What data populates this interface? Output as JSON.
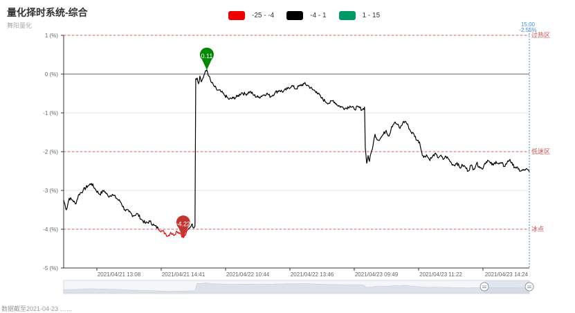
{
  "header": {
    "title": "量化择时系统-综合",
    "subtitle": "舞阳量化"
  },
  "legend": [
    {
      "label": "-25 - -4",
      "color": "#ee0000"
    },
    {
      "label": "-4 - 1",
      "color": "#000000"
    },
    {
      "label": "1 - 15",
      "color": "#009966"
    }
  ],
  "footer_note": "数据截至2021-04-23 ……",
  "chart_data": {
    "type": "line",
    "title": "量化择时系统-综合",
    "ylim": [
      -5,
      1
    ],
    "yticks": [
      1,
      0,
      -1,
      -2,
      -3,
      -4,
      -5
    ],
    "ytick_labels": [
      "1 (%)",
      "0 (%)",
      "-1 (%)",
      "-2 (%)",
      "-3 (%)",
      "-4 (%)",
      "-5 (%)"
    ],
    "xtick_labels": [
      "2021/04/21 13:08",
      "2021/04/21 14:41",
      "2021/04/22 10:44",
      "2021/04/22 13:46",
      "2021/04/23 09:49",
      "2021/04/23 11:22",
      "2021/04/23 14:24"
    ],
    "mark_lines": [
      {
        "value": 1,
        "label": "过热区"
      },
      {
        "value": -2,
        "label": "低迷区"
      },
      {
        "value": -4,
        "label": "冰点"
      }
    ],
    "mark_points": [
      {
        "label": "-4.22",
        "value": -4.22,
        "x": 172,
        "color": "#c23531"
      },
      {
        "label": "0.11",
        "value": 0.11,
        "x": 206,
        "color": "#008800"
      }
    ],
    "tooltip": {
      "time": "15:00",
      "value": "-2.55%"
    },
    "visual_map": [
      {
        "range": [
          -25,
          -4
        ],
        "color": "#ee0000"
      },
      {
        "range": [
          -4,
          1
        ],
        "color": "#000000"
      },
      {
        "range": [
          1,
          15
        ],
        "color": "#009966"
      }
    ],
    "anchors": [
      [
        0,
        -3.25
      ],
      [
        4,
        -3.5
      ],
      [
        8,
        -3.2
      ],
      [
        13,
        -3.25
      ],
      [
        17,
        -3.35
      ],
      [
        22,
        -3.1
      ],
      [
        28,
        -3.0
      ],
      [
        35,
        -2.88
      ],
      [
        40,
        -2.82
      ],
      [
        46,
        -2.98
      ],
      [
        52,
        -3.1
      ],
      [
        58,
        -3.0
      ],
      [
        64,
        -3.15
      ],
      [
        70,
        -3.1
      ],
      [
        76,
        -3.2
      ],
      [
        82,
        -3.3
      ],
      [
        88,
        -3.5
      ],
      [
        94,
        -3.55
      ],
      [
        100,
        -3.65
      ],
      [
        106,
        -3.6
      ],
      [
        112,
        -3.75
      ],
      [
        118,
        -3.85
      ],
      [
        124,
        -3.8
      ],
      [
        130,
        -3.9
      ],
      [
        136,
        -3.98
      ],
      [
        142,
        -4.05
      ],
      [
        146,
        -4.1
      ],
      [
        150,
        -4.18
      ],
      [
        154,
        -4.08
      ],
      [
        158,
        -4.15
      ],
      [
        163,
        -4.05
      ],
      [
        168,
        -4.1
      ],
      [
        172,
        -4.22
      ],
      [
        176,
        -4.12
      ],
      [
        180,
        -3.98
      ],
      [
        184,
        -3.88
      ],
      [
        188,
        -3.95
      ],
      [
        189,
        -3.92
      ],
      [
        190,
        -0.12
      ],
      [
        192,
        -0.1
      ],
      [
        194,
        -0.25
      ],
      [
        196,
        -0.05
      ],
      [
        198,
        -0.2
      ],
      [
        200,
        -0.12
      ],
      [
        203,
        0.02
      ],
      [
        206,
        0.11
      ],
      [
        209,
        -0.05
      ],
      [
        212,
        -0.2
      ],
      [
        216,
        -0.3
      ],
      [
        220,
        -0.4
      ],
      [
        226,
        -0.45
      ],
      [
        232,
        -0.55
      ],
      [
        238,
        -0.65
      ],
      [
        244,
        -0.62
      ],
      [
        250,
        -0.58
      ],
      [
        256,
        -0.48
      ],
      [
        262,
        -0.52
      ],
      [
        268,
        -0.45
      ],
      [
        274,
        -0.55
      ],
      [
        280,
        -0.6
      ],
      [
        286,
        -0.55
      ],
      [
        292,
        -0.5
      ],
      [
        298,
        -0.58
      ],
      [
        304,
        -0.48
      ],
      [
        310,
        -0.42
      ],
      [
        316,
        -0.45
      ],
      [
        322,
        -0.38
      ],
      [
        328,
        -0.3
      ],
      [
        334,
        -0.38
      ],
      [
        340,
        -0.3
      ],
      [
        346,
        -0.25
      ],
      [
        352,
        -0.3
      ],
      [
        358,
        -0.4
      ],
      [
        364,
        -0.45
      ],
      [
        370,
        -0.6
      ],
      [
        376,
        -0.7
      ],
      [
        382,
        -0.75
      ],
      [
        388,
        -0.68
      ],
      [
        394,
        -0.8
      ],
      [
        400,
        -0.85
      ],
      [
        406,
        -0.88
      ],
      [
        412,
        -0.82
      ],
      [
        418,
        -0.9
      ],
      [
        424,
        -0.85
      ],
      [
        430,
        -0.92
      ],
      [
        433,
        -0.85
      ],
      [
        434,
        -1.9
      ],
      [
        436,
        -2.3
      ],
      [
        438,
        -2.1
      ],
      [
        440,
        -2.25
      ],
      [
        442,
        -2.05
      ],
      [
        445,
        -1.85
      ],
      [
        448,
        -1.55
      ],
      [
        452,
        -1.7
      ],
      [
        456,
        -1.65
      ],
      [
        460,
        -1.55
      ],
      [
        464,
        -1.45
      ],
      [
        468,
        -1.6
      ],
      [
        472,
        -1.35
      ],
      [
        476,
        -1.25
      ],
      [
        480,
        -1.3
      ],
      [
        484,
        -1.4
      ],
      [
        488,
        -1.25
      ],
      [
        492,
        -1.22
      ],
      [
        496,
        -1.35
      ],
      [
        500,
        -1.5
      ],
      [
        504,
        -1.55
      ],
      [
        508,
        -1.7
      ],
      [
        512,
        -1.75
      ],
      [
        515,
        -2.0
      ],
      [
        518,
        -2.15
      ],
      [
        522,
        -2.08
      ],
      [
        526,
        -2.2
      ],
      [
        530,
        -2.15
      ],
      [
        534,
        -2.05
      ],
      [
        538,
        -2.15
      ],
      [
        542,
        -2.1
      ],
      [
        546,
        -2.2
      ],
      [
        550,
        -2.12
      ],
      [
        554,
        -2.2
      ],
      [
        558,
        -2.3
      ],
      [
        562,
        -2.35
      ],
      [
        566,
        -2.28
      ],
      [
        570,
        -2.42
      ],
      [
        574,
        -2.35
      ],
      [
        578,
        -2.4
      ],
      [
        582,
        -2.5
      ],
      [
        586,
        -2.35
      ],
      [
        590,
        -2.45
      ],
      [
        594,
        -2.3
      ],
      [
        598,
        -2.38
      ],
      [
        602,
        -2.45
      ],
      [
        606,
        -2.3
      ],
      [
        610,
        -2.22
      ],
      [
        614,
        -2.3
      ],
      [
        618,
        -2.35
      ],
      [
        622,
        -2.25
      ],
      [
        626,
        -2.32
      ],
      [
        630,
        -2.3
      ],
      [
        634,
        -2.38
      ],
      [
        638,
        -2.28
      ],
      [
        642,
        -2.2
      ],
      [
        646,
        -2.35
      ],
      [
        650,
        -2.4
      ],
      [
        654,
        -2.45
      ],
      [
        658,
        -2.5
      ],
      [
        662,
        -2.48
      ],
      [
        665,
        -2.45
      ],
      [
        670,
        -2.52
      ]
    ]
  }
}
